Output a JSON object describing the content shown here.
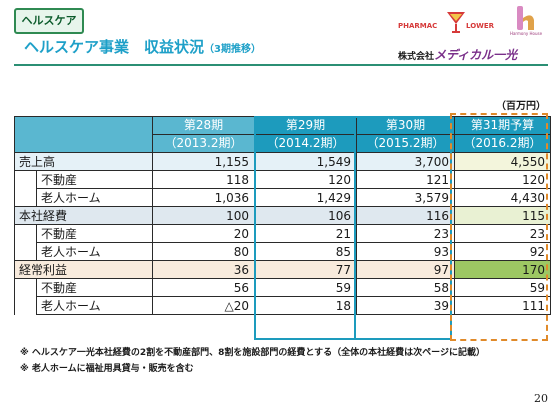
{
  "header": {
    "tag": "ヘルスケア",
    "title_main": "ヘルスケア事業　収益状況",
    "title_sub": "（3期推移）"
  },
  "logos": {
    "pharmac_left": "PHARMAC",
    "pharmac_right": "LOWER",
    "harmony": "Harmony House",
    "company_prefix": "株式会社",
    "company_name": "メディカル一光"
  },
  "colors": {
    "title": "#1ea0c8",
    "header_cell": "#5ab7d0",
    "highlight_border": "#1d9bbd",
    "forecast_border": "#e08a2a",
    "op_forecast": "#9dc763"
  },
  "table": {
    "unit": "（百万円）",
    "columns": [
      {
        "name": "第28期",
        "period": "（2013.2期）"
      },
      {
        "name": "第29期",
        "period": "（2014.2期）"
      },
      {
        "name": "第30期",
        "period": "（2015.2期）"
      },
      {
        "name": "第31期予算",
        "period": "（2016.2期）"
      }
    ],
    "rows": [
      {
        "label": "売上高",
        "values": [
          "1,155",
          "1,549",
          "3,700",
          "4,550"
        ]
      },
      {
        "label": "不動産",
        "values": [
          "118",
          "120",
          "121",
          "120"
        ]
      },
      {
        "label": "老人ホーム",
        "values": [
          "1,036",
          "1,429",
          "3,579",
          "4,430"
        ]
      },
      {
        "label": "本社経費",
        "values": [
          "100",
          "106",
          "116",
          "115"
        ]
      },
      {
        "label": "不動産",
        "values": [
          "20",
          "21",
          "23",
          "23"
        ]
      },
      {
        "label": "老人ホーム",
        "values": [
          "80",
          "85",
          "93",
          "92"
        ]
      },
      {
        "label": "経常利益",
        "values": [
          "36",
          "77",
          "97",
          "170"
        ]
      },
      {
        "label": "不動産",
        "values": [
          "56",
          "59",
          "58",
          "59"
        ]
      },
      {
        "label": "老人ホーム",
        "values": [
          "△20",
          "18",
          "39",
          "111"
        ]
      }
    ]
  },
  "notes": [
    "※ ヘルスケア一光本社経費の2割を不動産部門、8割を施設部門の経費とする（全体の本社経費は次ページに記載）",
    "※ 老人ホームに福祉用具貸与・販売を含む"
  ],
  "page_number": "20"
}
